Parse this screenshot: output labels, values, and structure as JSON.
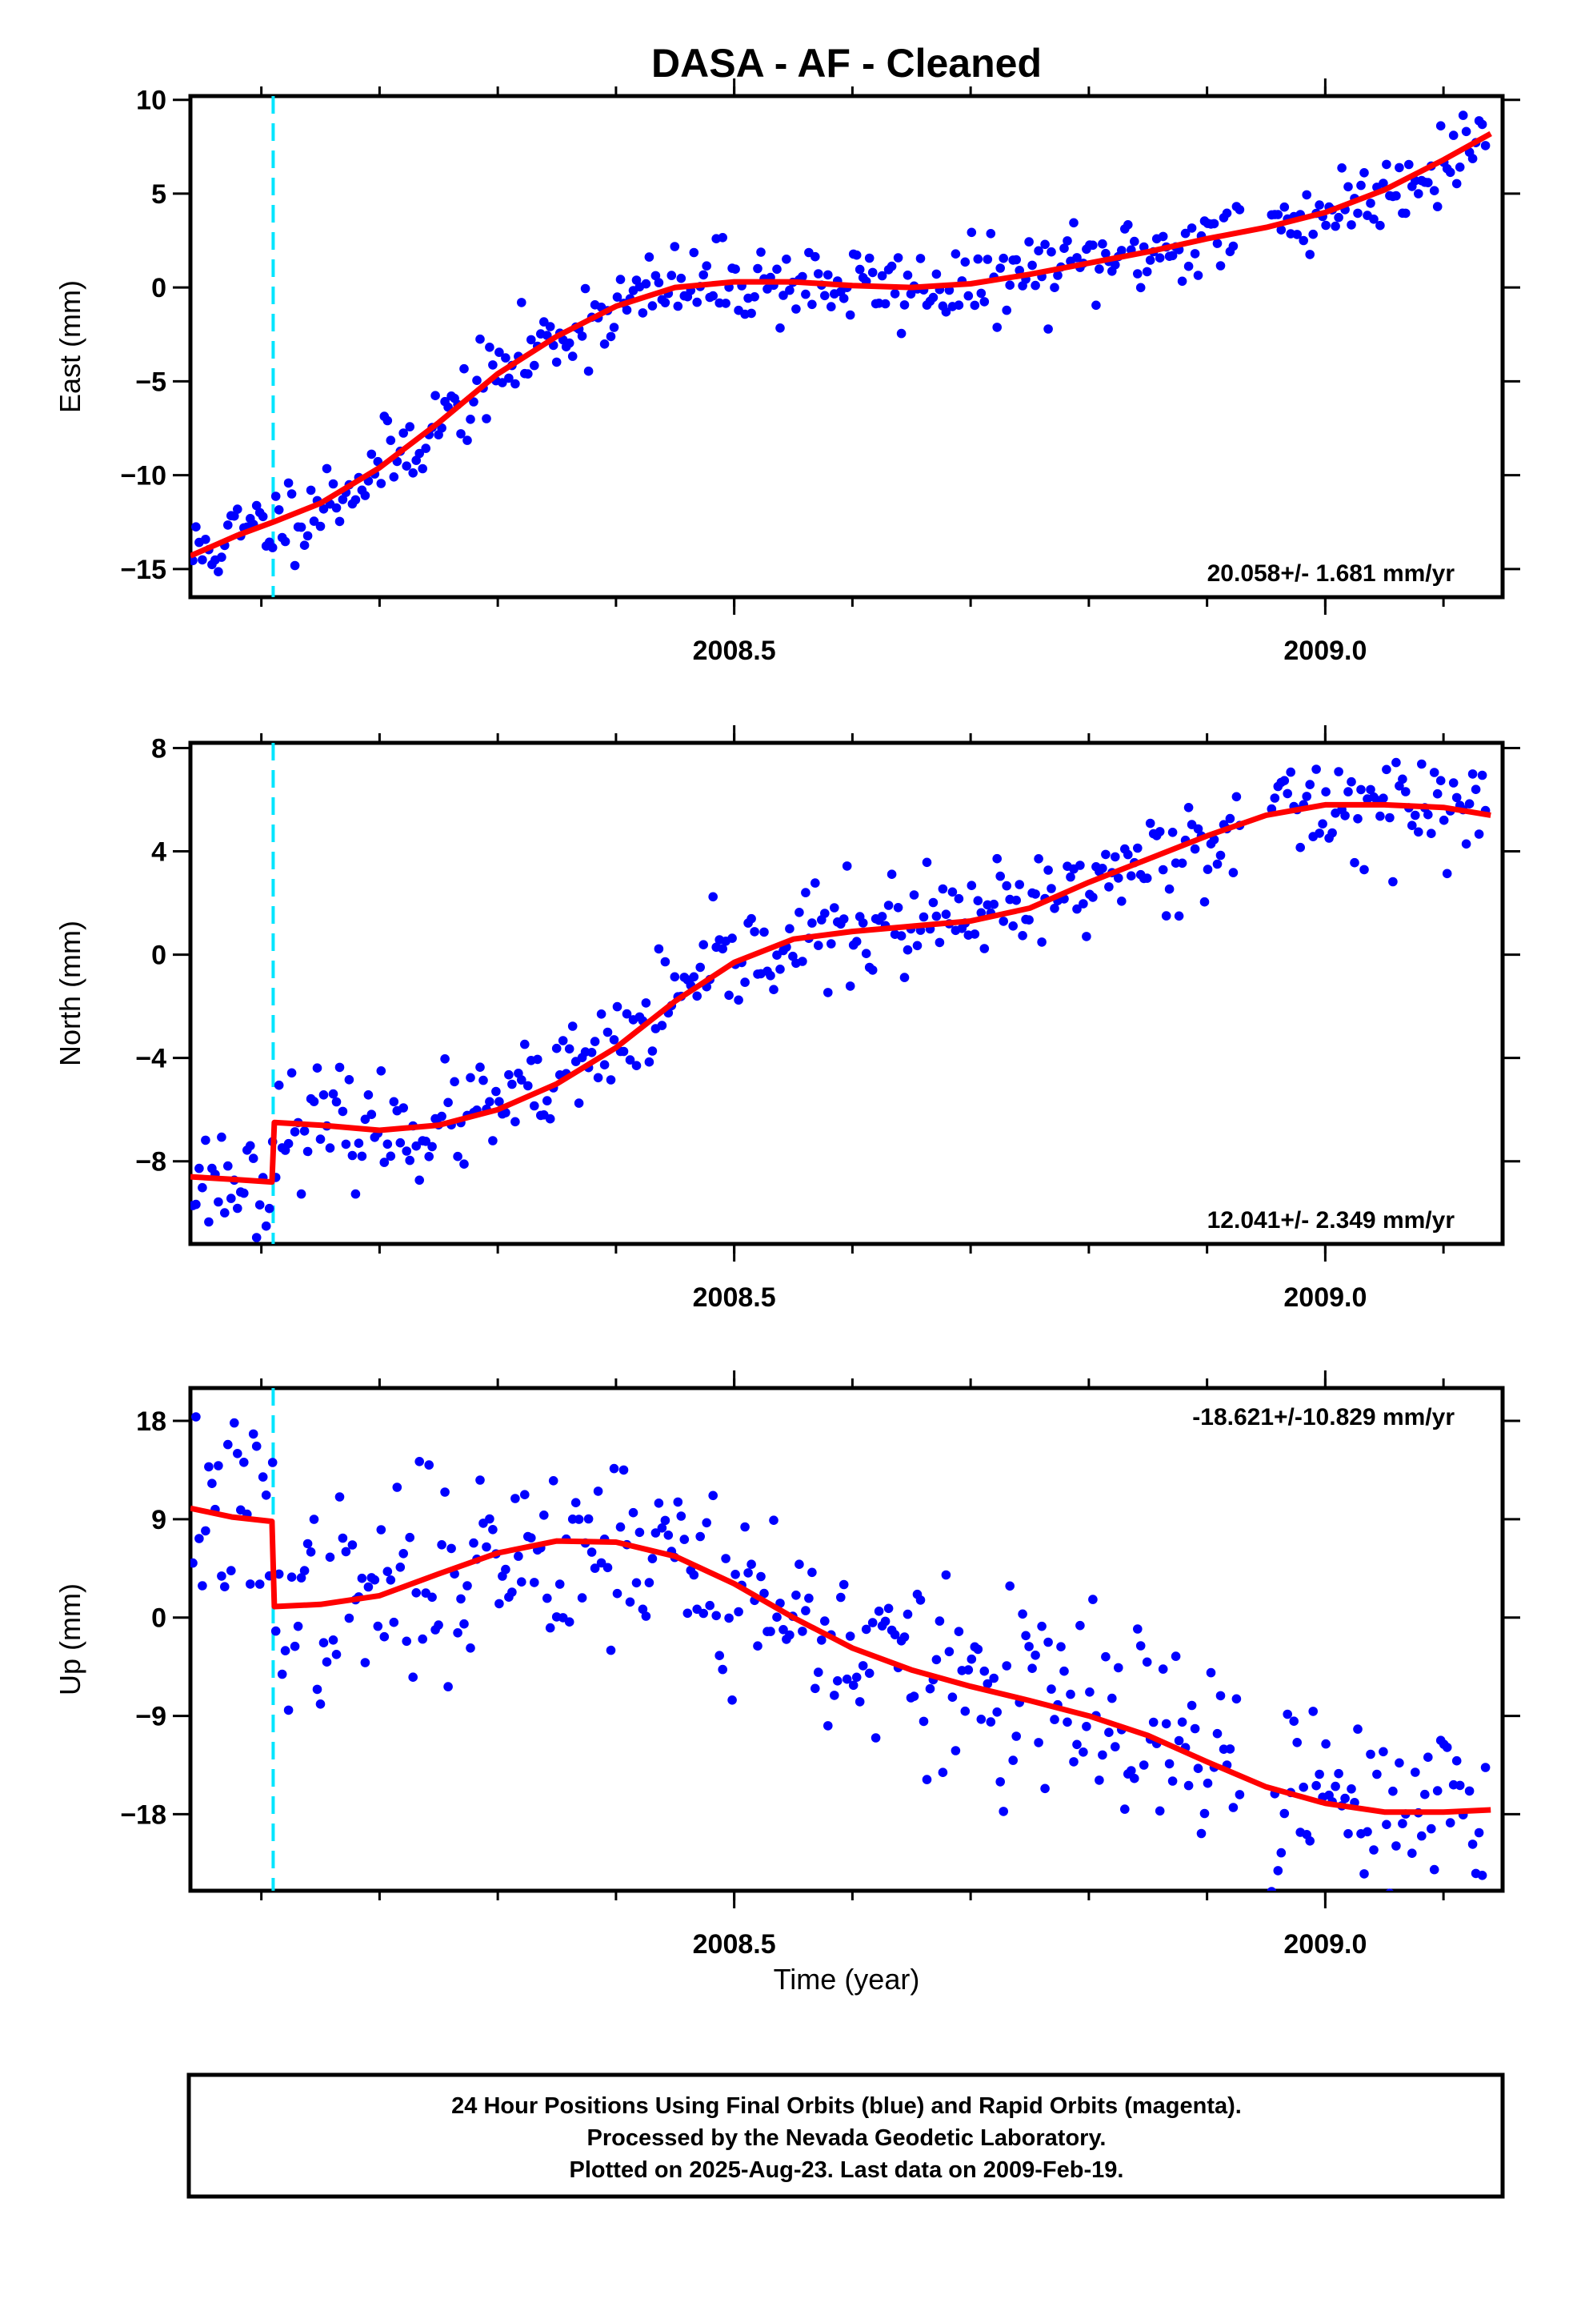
{
  "chart_data": {
    "type": "scatter",
    "title": "DASA  - AF - Cleaned",
    "x_label": "Time (year)",
    "x_range": [
      2008.04,
      2009.15
    ],
    "x_ticks": [
      2008.5,
      2009.0
    ],
    "x_tick_labels": [
      "2008.5",
      "2009.0"
    ],
    "event_line_x": 2008.11,
    "colors": {
      "points": "#0000ff",
      "fit": "#ff0000",
      "event": "#00e5ff",
      "frame": "#000000"
    },
    "panels": [
      {
        "id": "east",
        "y_label": "East (mm)",
        "y_range": [
          -16.5,
          10.2
        ],
        "y_ticks": [
          10,
          5,
          0,
          -5,
          -10,
          -15
        ],
        "y_tick_labels": [
          "10",
          "5",
          "0",
          "−5",
          "−10",
          "−15"
        ],
        "rate": "20.058+/- 1.681 mm/yr",
        "rate_position": "bottom-right",
        "noise": 1.1,
        "seed": 11,
        "fit": {
          "x": [
            2008.04,
            2008.08,
            2008.11,
            2008.15,
            2008.2,
            2008.25,
            2008.3,
            2008.35,
            2008.4,
            2008.45,
            2008.5,
            2008.55,
            2008.6,
            2008.65,
            2008.7,
            2008.75,
            2008.8,
            2008.85,
            2008.9,
            2008.95,
            2009.0,
            2009.05,
            2009.1,
            2009.14
          ],
          "y": [
            -14.3,
            -13.2,
            -12.5,
            -11.5,
            -9.6,
            -7.2,
            -4.6,
            -2.6,
            -1.0,
            0.0,
            0.3,
            0.3,
            0.1,
            0.0,
            0.2,
            0.7,
            1.3,
            1.9,
            2.6,
            3.2,
            4.0,
            5.2,
            6.8,
            8.2
          ]
        }
      },
      {
        "id": "north",
        "y_label": "North (mm)",
        "y_range": [
          -11.2,
          8.2
        ],
        "y_ticks": [
          8,
          4,
          0,
          -4,
          -8
        ],
        "y_tick_labels": [
          "8",
          "4",
          "0",
          "−4",
          "−8"
        ],
        "rate": "12.041+/- 2.349 mm/yr",
        "rate_position": "bottom-right",
        "noise": 1.0,
        "seed": 23,
        "fit": {
          "x": [
            2008.04,
            2008.075,
            2008.109,
            2008.111,
            2008.15,
            2008.2,
            2008.25,
            2008.3,
            2008.35,
            2008.4,
            2008.45,
            2008.5,
            2008.55,
            2008.6,
            2008.65,
            2008.7,
            2008.75,
            2008.8,
            2008.85,
            2008.9,
            2008.95,
            2009.0,
            2009.05,
            2009.1,
            2009.14
          ],
          "y": [
            -8.6,
            -8.7,
            -8.8,
            -6.5,
            -6.6,
            -6.8,
            -6.6,
            -6.0,
            -5.0,
            -3.6,
            -1.8,
            -0.3,
            0.6,
            0.9,
            1.1,
            1.3,
            1.8,
            2.8,
            3.7,
            4.6,
            5.4,
            5.8,
            5.8,
            5.7,
            5.4
          ]
        }
      },
      {
        "id": "up",
        "y_label": "Up (mm)",
        "y_range": [
          -25,
          21
        ],
        "y_ticks": [
          18,
          9,
          0,
          -9,
          -18
        ],
        "y_tick_labels": [
          "18",
          "9",
          "0",
          "−9",
          "−18"
        ],
        "rate": "-18.621+/-10.829 mm/yr",
        "rate_position": "top-right",
        "noise": 4.5,
        "seed": 37,
        "fit": {
          "x": [
            2008.04,
            2008.075,
            2008.109,
            2008.111,
            2008.15,
            2008.2,
            2008.25,
            2008.3,
            2008.35,
            2008.4,
            2008.45,
            2008.5,
            2008.55,
            2008.6,
            2008.65,
            2008.7,
            2008.75,
            2008.8,
            2008.85,
            2008.9,
            2008.95,
            2009.0,
            2009.05,
            2009.1,
            2009.14
          ],
          "y": [
            10.0,
            9.2,
            8.8,
            1.0,
            1.2,
            2.0,
            4.0,
            5.9,
            7.0,
            6.9,
            5.6,
            3.1,
            0.0,
            -2.8,
            -4.8,
            -6.3,
            -7.6,
            -9.0,
            -10.8,
            -13.2,
            -15.5,
            -17.0,
            -17.8,
            -17.8,
            -17.6
          ]
        }
      }
    ]
  },
  "footer": {
    "lines": [
      "24 Hour Positions Using Final Orbits (blue) and Rapid Orbits (magenta).",
      "Processed by the Nevada Geodetic Laboratory.",
      "Plotted on 2025-Aug-23. Last data on 2009-Feb-19."
    ]
  }
}
